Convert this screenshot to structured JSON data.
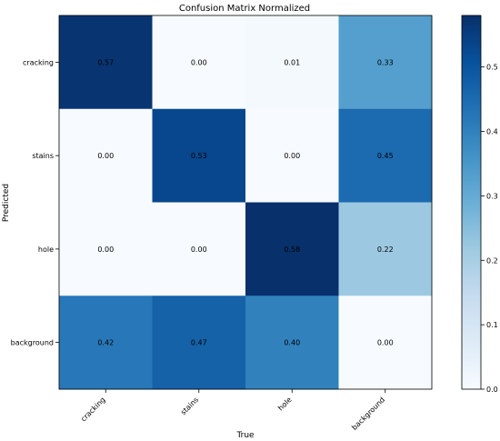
{
  "chart_data": {
    "type": "heatmap",
    "title": "Confusion Matrix Normalized",
    "xlabel": "True",
    "ylabel": "Predicted",
    "x_categories": [
      "cracking",
      "stains",
      "hole",
      "background"
    ],
    "y_categories": [
      "cracking",
      "stains",
      "hole",
      "background"
    ],
    "values": [
      [
        0.57,
        0.0,
        0.01,
        0.33
      ],
      [
        0.0,
        0.53,
        0.0,
        0.45
      ],
      [
        0.0,
        0.0,
        0.58,
        0.22
      ],
      [
        0.42,
        0.47,
        0.4,
        0.0
      ]
    ],
    "value_labels": [
      [
        "0.57",
        "0.00",
        "0.01",
        "0.33"
      ],
      [
        "0.00",
        "0.53",
        "0.00",
        "0.45"
      ],
      [
        "0.00",
        "0.00",
        "0.58",
        "0.22"
      ],
      [
        "0.42",
        "0.47",
        "0.40",
        "0.00"
      ]
    ],
    "colormap": "Blues",
    "vmin": 0,
    "vmax": 0.58,
    "colorbar_ticks": [
      0.0,
      0.1,
      0.2,
      0.3,
      0.4,
      0.5
    ],
    "colorbar_tick_labels": [
      "0.0",
      "0.1",
      "0.2",
      "0.3",
      "0.4",
      "0.5"
    ],
    "grid": false
  }
}
